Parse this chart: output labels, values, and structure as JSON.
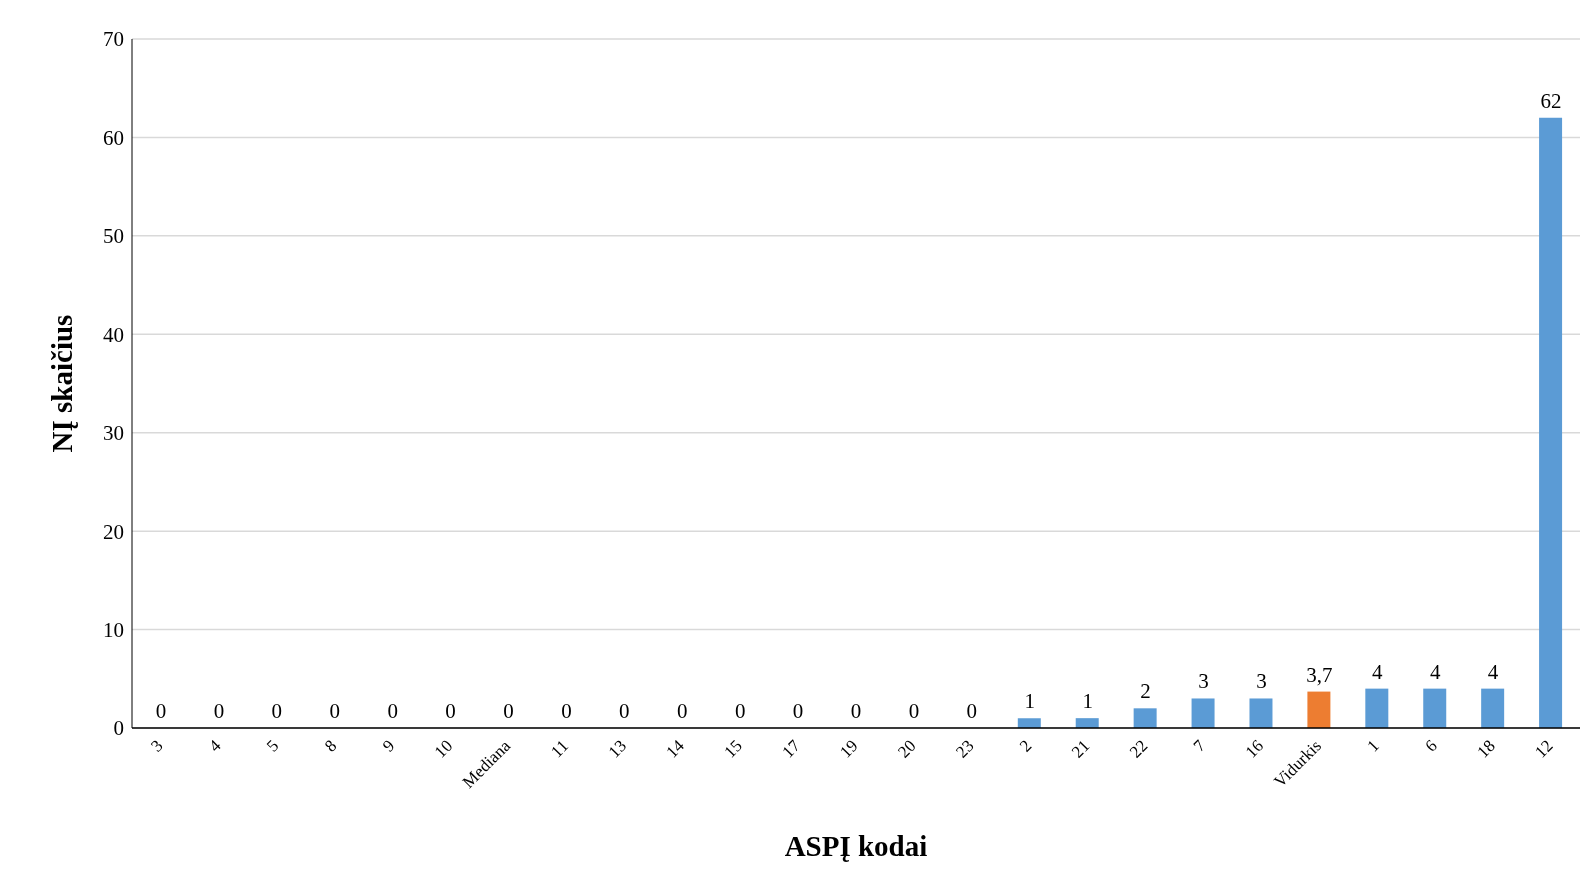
{
  "chart_data": {
    "type": "bar",
    "xlabel": "ASPĮ kodai",
    "ylabel": "NĮ skaičius",
    "categories": [
      "3",
      "4",
      "5",
      "8",
      "9",
      "10",
      "Mediana",
      "11",
      "13",
      "14",
      "15",
      "17",
      "19",
      "20",
      "23",
      "2",
      "21",
      "22",
      "7",
      "16",
      "Vidurkis",
      "1",
      "6",
      "18",
      "12"
    ],
    "values": [
      0,
      0,
      0,
      0,
      0,
      0,
      0,
      0,
      0,
      0,
      0,
      0,
      0,
      0,
      0,
      1,
      1,
      2,
      3,
      3,
      3.7,
      4,
      4,
      4,
      62
    ],
    "colors": [
      "#5b9bd5",
      "#5b9bd5",
      "#5b9bd5",
      "#5b9bd5",
      "#5b9bd5",
      "#5b9bd5",
      "#5b9bd5",
      "#5b9bd5",
      "#5b9bd5",
      "#5b9bd5",
      "#5b9bd5",
      "#5b9bd5",
      "#5b9bd5",
      "#5b9bd5",
      "#5b9bd5",
      "#5b9bd5",
      "#5b9bd5",
      "#5b9bd5",
      "#5b9bd5",
      "#5b9bd5",
      "#ed7d31",
      "#5b9bd5",
      "#5b9bd5",
      "#5b9bd5",
      "#5b9bd5"
    ],
    "value_labels": [
      "0",
      "0",
      "0",
      "0",
      "0",
      "0",
      "0",
      "0",
      "0",
      "0",
      "0",
      "0",
      "0",
      "0",
      "0",
      "1",
      "1",
      "2",
      "3",
      "3",
      "3,7",
      "4",
      "4",
      "4",
      "62"
    ],
    "ylim": [
      0,
      70
    ],
    "yticks": [
      0,
      10,
      20,
      30,
      40,
      50,
      60,
      70
    ],
    "grid": "y"
  }
}
